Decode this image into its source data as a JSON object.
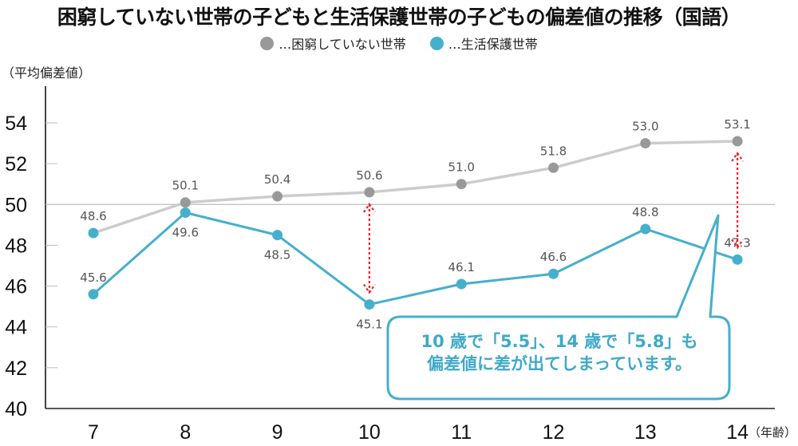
{
  "title": "困窮していない世帯の子どもと生活保護世帯の子どもの偏差値の推移（国語）",
  "legend": [
    {
      "label": "…困窮していない世帯",
      "color": "#999999",
      "icon": "circle-marker-icon"
    },
    {
      "label": "…生活保護世帯",
      "color": "#45afcc",
      "icon": "circle-marker-icon"
    }
  ],
  "callout": {
    "line1": "10 歳で「5.5」、14 歳で「5.8」も",
    "line2": "偏差値に差が出てしまっています。",
    "color": "#45afcc"
  },
  "colors": {
    "gray_line": "#cccccc",
    "gray_marker": "#999999",
    "blue": "#45afcc",
    "arrow": "#ee1c25",
    "reference_line": "#bbbbbb"
  },
  "chart_data": {
    "type": "line",
    "title": "困窮していない世帯の子どもと生活保護世帯の子どもの偏差値の推移（国語）",
    "xlabel": "（年齢）",
    "ylabel": "（平均偏差値）",
    "x": [
      7,
      8,
      9,
      10,
      11,
      12,
      13,
      14
    ],
    "x_tick_labels": [
      "7",
      "8",
      "9",
      "10",
      "11",
      "12",
      "13",
      "14"
    ],
    "ylim": [
      40,
      55
    ],
    "y_ticks": [
      40,
      42,
      44,
      46,
      48,
      50,
      52,
      54
    ],
    "y_tick_labels": [
      "40",
      "42",
      "44",
      "46",
      "48",
      "50",
      "52",
      "54"
    ],
    "reference_line": 50,
    "legend_position": "top-center",
    "series": [
      {
        "name": "…困窮していない世帯",
        "values": [
          48.6,
          50.1,
          50.4,
          50.6,
          51.0,
          51.8,
          53.0,
          53.1
        ],
        "labels": [
          "48.6",
          "50.1",
          "50.4",
          "50.6",
          "51.0",
          "51.8",
          "53.0",
          "53.1"
        ],
        "label_position": "above"
      },
      {
        "name": "…生活保護世帯",
        "values": [
          45.6,
          49.6,
          48.5,
          45.1,
          46.1,
          46.6,
          48.8,
          47.3
        ],
        "labels": [
          "45.6",
          "49.6",
          "48.5",
          "45.1",
          "46.1",
          "46.6",
          "48.8",
          "47.3"
        ],
        "label_position": [
          "above",
          "below",
          "below",
          "below",
          "above",
          "above",
          "above",
          "above"
        ]
      }
    ],
    "annotations": [
      {
        "type": "double-arrow",
        "x": 10,
        "from": 45.1,
        "to": 50.6,
        "gap": 5.5
      },
      {
        "type": "double-arrow",
        "x": 14,
        "from": 47.3,
        "to": 53.1,
        "gap": 5.8
      }
    ]
  }
}
